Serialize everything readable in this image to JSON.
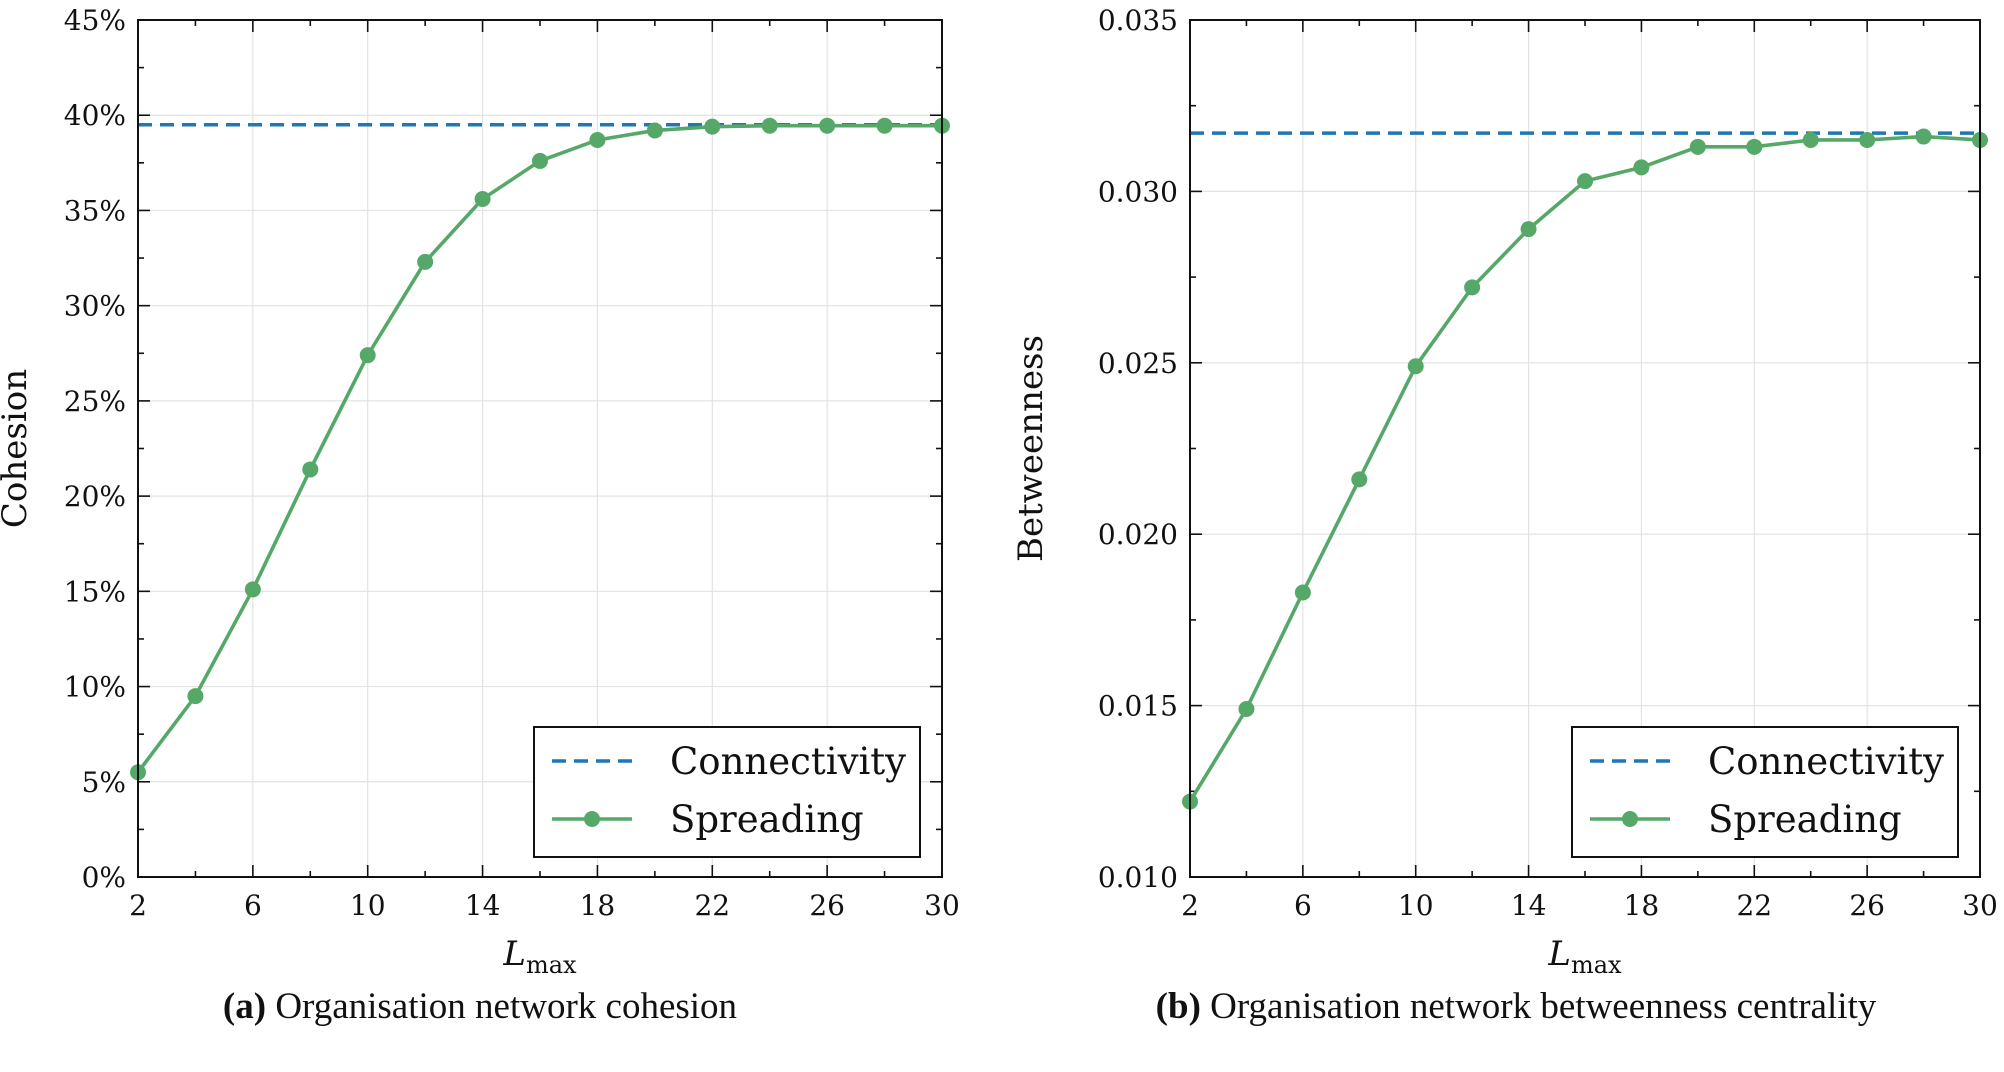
{
  "chart_data": [
    {
      "type": "line",
      "id": "a",
      "caption_tag": "(a)",
      "caption": "Organisation network cohesion",
      "xlabel": "L",
      "xlabel_sub": "max",
      "ylabel": "Cohesion",
      "xlim": [
        2,
        30
      ],
      "ylim": [
        0,
        45
      ],
      "xticks": [
        2,
        6,
        10,
        14,
        18,
        22,
        26,
        30
      ],
      "yticks": [
        0,
        5,
        10,
        15,
        20,
        25,
        30,
        35,
        40,
        45
      ],
      "ytick_labels": [
        "0%",
        "5%",
        "10%",
        "15%",
        "20%",
        "25%",
        "30%",
        "35%",
        "40%",
        "45%"
      ],
      "grid": true,
      "legend_position": "bottom-right",
      "series": [
        {
          "name": "Connectivity",
          "style": "dashed",
          "color": "#1f77b4",
          "x": [
            2,
            30
          ],
          "values": [
            39.5,
            39.5
          ]
        },
        {
          "name": "Spreading",
          "style": "line-marker",
          "color": "#55a868",
          "x": [
            2,
            4,
            6,
            8,
            10,
            12,
            14,
            16,
            18,
            20,
            22,
            24,
            26,
            28,
            30
          ],
          "values": [
            5.5,
            9.5,
            15.1,
            21.4,
            27.4,
            32.3,
            35.6,
            37.6,
            38.7,
            39.2,
            39.4,
            39.45,
            39.45,
            39.45,
            39.45
          ]
        }
      ]
    },
    {
      "type": "line",
      "id": "b",
      "caption_tag": "(b)",
      "caption": "Organisation network betweenness centrality",
      "xlabel": "L",
      "xlabel_sub": "max",
      "ylabel": "Betweenness",
      "xlim": [
        2,
        30
      ],
      "ylim": [
        0.01,
        0.035
      ],
      "xticks": [
        2,
        6,
        10,
        14,
        18,
        22,
        26,
        30
      ],
      "yticks": [
        0.01,
        0.015,
        0.02,
        0.025,
        0.03,
        0.035
      ],
      "ytick_labels": [
        "0.010",
        "0.015",
        "0.020",
        "0.025",
        "0.030",
        "0.035"
      ],
      "grid": true,
      "legend_position": "bottom-right",
      "series": [
        {
          "name": "Connectivity",
          "style": "dashed",
          "color": "#1f77b4",
          "x": [
            2,
            30
          ],
          "values": [
            0.0317,
            0.0317
          ]
        },
        {
          "name": "Spreading",
          "style": "line-marker",
          "color": "#55a868",
          "x": [
            2,
            4,
            6,
            8,
            10,
            12,
            14,
            16,
            18,
            20,
            22,
            24,
            26,
            28,
            30
          ],
          "values": [
            0.0122,
            0.0149,
            0.0183,
            0.0216,
            0.0249,
            0.0272,
            0.0289,
            0.0303,
            0.0307,
            0.0313,
            0.0313,
            0.0315,
            0.0315,
            0.0316,
            0.0315
          ]
        }
      ]
    }
  ]
}
